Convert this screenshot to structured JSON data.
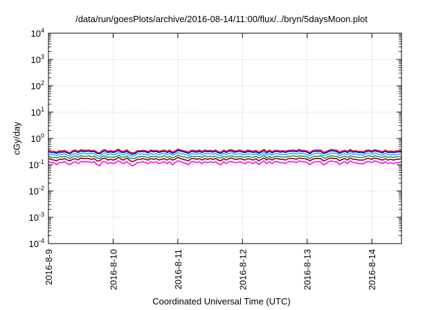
{
  "chart_data": {
    "type": "line",
    "title": "/data/run/goesPlots/archive/2016-08-14/11:00/flux/../bryn/5daysMoon.plot",
    "xlabel": "Coordinated Universal Time (UTC)",
    "ylabel": "cGy/day",
    "y_scale": "log",
    "ylim": [
      0.0001,
      10000
    ],
    "y_ticks": [
      {
        "value": 0.0001,
        "base": "10",
        "exp": "-4"
      },
      {
        "value": 0.001,
        "base": "10",
        "exp": "-3"
      },
      {
        "value": 0.01,
        "base": "10",
        "exp": "-2"
      },
      {
        "value": 0.1,
        "base": "10",
        "exp": "-1"
      },
      {
        "value": 1,
        "base": "10",
        "exp": "0"
      },
      {
        "value": 10,
        "base": "10",
        "exp": "1"
      },
      {
        "value": 100,
        "base": "10",
        "exp": "2"
      },
      {
        "value": 1000,
        "base": "10",
        "exp": "3"
      },
      {
        "value": 10000,
        "base": "10",
        "exp": "4"
      }
    ],
    "xlim": [
      "2016-08-09T00:00",
      "2016-08-14T11:00"
    ],
    "x_ticks": [
      "2016-8-9",
      "2016-8-10",
      "2016-8-11",
      "2016-8-12",
      "2016-8-13",
      "2016-8-14"
    ],
    "grid": true,
    "x_step_hours": 1,
    "series": [
      {
        "color": "#ff0000",
        "base": 0.33,
        "values": [
          0.36,
          0.33,
          0.32,
          0.3,
          0.34,
          0.33,
          0.35,
          0.31,
          0.28,
          0.34,
          0.36,
          0.32,
          0.37,
          0.36,
          0.35,
          0.36,
          0.34,
          0.35,
          0.3,
          0.28,
          0.35,
          0.37,
          0.32,
          0.34,
          0.32,
          0.34,
          0.39,
          0.33,
          0.32,
          0.37,
          0.31,
          0.28,
          0.29,
          0.34,
          0.34,
          0.35,
          0.34,
          0.31,
          0.36,
          0.34,
          0.35,
          0.32,
          0.34,
          0.36,
          0.32,
          0.36,
          0.3,
          0.33,
          0.39,
          0.36,
          0.34,
          0.32,
          0.3,
          0.35,
          0.35,
          0.33,
          0.36,
          0.32,
          0.36,
          0.34,
          0.35,
          0.33,
          0.36,
          0.31,
          0.3,
          0.36,
          0.32,
          0.36,
          0.37,
          0.33,
          0.34,
          0.36,
          0.33,
          0.32,
          0.36,
          0.34,
          0.32,
          0.35,
          0.3,
          0.33,
          0.38,
          0.31,
          0.36,
          0.31,
          0.35,
          0.35,
          0.33,
          0.34,
          0.32,
          0.35,
          0.35,
          0.36,
          0.34,
          0.38,
          0.35,
          0.35,
          0.33,
          0.29,
          0.34,
          0.36,
          0.36,
          0.36,
          0.3,
          0.31,
          0.35,
          0.38,
          0.36,
          0.36,
          0.3,
          0.33,
          0.35,
          0.32,
          0.38,
          0.33,
          0.34,
          0.32,
          0.32,
          0.31,
          0.36,
          0.36,
          0.33,
          0.37,
          0.35,
          0.33,
          0.31,
          0.36,
          0.32,
          0.33,
          0.32,
          0.33,
          0.34,
          0.35
        ]
      },
      {
        "color": "#0000ff",
        "base": 0.3,
        "values": [
          0.32,
          0.29,
          0.29,
          0.27,
          0.3,
          0.3,
          0.31,
          0.28,
          0.26,
          0.31,
          0.33,
          0.29,
          0.33,
          0.32,
          0.32,
          0.33,
          0.31,
          0.32,
          0.27,
          0.26,
          0.31,
          0.34,
          0.29,
          0.31,
          0.29,
          0.31,
          0.35,
          0.3,
          0.29,
          0.33,
          0.28,
          0.25,
          0.26,
          0.31,
          0.31,
          0.32,
          0.31,
          0.28,
          0.33,
          0.31,
          0.32,
          0.29,
          0.31,
          0.33,
          0.29,
          0.32,
          0.27,
          0.3,
          0.35,
          0.33,
          0.31,
          0.29,
          0.27,
          0.32,
          0.31,
          0.3,
          0.32,
          0.29,
          0.33,
          0.31,
          0.32,
          0.3,
          0.33,
          0.28,
          0.27,
          0.33,
          0.29,
          0.33,
          0.33,
          0.3,
          0.31,
          0.33,
          0.3,
          0.29,
          0.32,
          0.31,
          0.29,
          0.31,
          0.27,
          0.3,
          0.35,
          0.28,
          0.33,
          0.28,
          0.32,
          0.32,
          0.3,
          0.31,
          0.29,
          0.32,
          0.32,
          0.33,
          0.31,
          0.34,
          0.31,
          0.32,
          0.3,
          0.26,
          0.31,
          0.33,
          0.32,
          0.33,
          0.27,
          0.28,
          0.32,
          0.34,
          0.33,
          0.32,
          0.27,
          0.3,
          0.32,
          0.29,
          0.34,
          0.3,
          0.31,
          0.29,
          0.29,
          0.28,
          0.32,
          0.33,
          0.3,
          0.34,
          0.32,
          0.3,
          0.28,
          0.33,
          0.29,
          0.3,
          0.29,
          0.3,
          0.31,
          0.32
        ]
      },
      {
        "color": "#00bfff",
        "base": 0.25,
        "values": [
          0.26,
          0.24,
          0.24,
          0.22,
          0.25,
          0.25,
          0.26,
          0.23,
          0.21,
          0.25,
          0.27,
          0.24,
          0.27,
          0.27,
          0.26,
          0.27,
          0.26,
          0.26,
          0.22,
          0.21,
          0.26,
          0.28,
          0.24,
          0.26,
          0.24,
          0.25,
          0.29,
          0.25,
          0.24,
          0.28,
          0.23,
          0.21,
          0.22,
          0.26,
          0.25,
          0.26,
          0.25,
          0.23,
          0.27,
          0.25,
          0.26,
          0.24,
          0.26,
          0.27,
          0.24,
          0.27,
          0.23,
          0.25,
          0.29,
          0.27,
          0.25,
          0.24,
          0.22,
          0.26,
          0.26,
          0.25,
          0.27,
          0.24,
          0.27,
          0.26,
          0.26,
          0.25,
          0.27,
          0.23,
          0.22,
          0.27,
          0.24,
          0.27,
          0.28,
          0.25,
          0.25,
          0.27,
          0.24,
          0.24,
          0.27,
          0.25,
          0.24,
          0.26,
          0.23,
          0.24,
          0.29,
          0.23,
          0.27,
          0.23,
          0.26,
          0.26,
          0.25,
          0.25,
          0.24,
          0.26,
          0.26,
          0.27,
          0.25,
          0.28,
          0.26,
          0.26,
          0.24,
          0.22,
          0.25,
          0.27,
          0.27,
          0.27,
          0.22,
          0.23,
          0.26,
          0.28,
          0.27,
          0.27,
          0.22,
          0.25,
          0.26,
          0.24,
          0.28,
          0.25,
          0.25,
          0.24,
          0.24,
          0.23,
          0.27,
          0.27,
          0.25,
          0.28,
          0.26,
          0.25,
          0.23,
          0.27,
          0.24,
          0.24,
          0.24,
          0.24,
          0.25,
          0.26
        ]
      },
      {
        "color": "#2e8b57",
        "base": 0.2,
        "values": [
          0.21,
          0.19,
          0.19,
          0.18,
          0.2,
          0.2,
          0.21,
          0.19,
          0.17,
          0.2,
          0.22,
          0.19,
          0.22,
          0.21,
          0.21,
          0.22,
          0.2,
          0.21,
          0.18,
          0.17,
          0.21,
          0.22,
          0.19,
          0.2,
          0.19,
          0.2,
          0.23,
          0.2,
          0.19,
          0.22,
          0.18,
          0.17,
          0.17,
          0.2,
          0.2,
          0.21,
          0.2,
          0.18,
          0.21,
          0.2,
          0.21,
          0.19,
          0.2,
          0.22,
          0.19,
          0.21,
          0.18,
          0.2,
          0.23,
          0.21,
          0.2,
          0.19,
          0.18,
          0.21,
          0.21,
          0.2,
          0.21,
          0.19,
          0.22,
          0.2,
          0.21,
          0.2,
          0.21,
          0.18,
          0.18,
          0.21,
          0.19,
          0.21,
          0.22,
          0.2,
          0.2,
          0.21,
          0.2,
          0.19,
          0.21,
          0.2,
          0.19,
          0.21,
          0.18,
          0.2,
          0.23,
          0.18,
          0.21,
          0.18,
          0.21,
          0.21,
          0.2,
          0.2,
          0.19,
          0.21,
          0.21,
          0.22,
          0.2,
          0.22,
          0.21,
          0.21,
          0.2,
          0.17,
          0.2,
          0.21,
          0.21,
          0.22,
          0.18,
          0.18,
          0.21,
          0.22,
          0.21,
          0.21,
          0.18,
          0.2,
          0.21,
          0.19,
          0.22,
          0.2,
          0.2,
          0.19,
          0.19,
          0.19,
          0.21,
          0.22,
          0.2,
          0.22,
          0.21,
          0.2,
          0.19,
          0.21,
          0.19,
          0.2,
          0.19,
          0.2,
          0.2,
          0.21
        ]
      },
      {
        "color": "#8b0000",
        "base": 0.16,
        "values": [
          0.17,
          0.16,
          0.15,
          0.14,
          0.16,
          0.16,
          0.17,
          0.15,
          0.14,
          0.16,
          0.17,
          0.15,
          0.18,
          0.17,
          0.17,
          0.17,
          0.16,
          0.17,
          0.14,
          0.14,
          0.17,
          0.18,
          0.15,
          0.16,
          0.15,
          0.16,
          0.19,
          0.16,
          0.15,
          0.18,
          0.15,
          0.13,
          0.14,
          0.16,
          0.16,
          0.17,
          0.16,
          0.15,
          0.17,
          0.16,
          0.17,
          0.15,
          0.16,
          0.17,
          0.15,
          0.17,
          0.15,
          0.16,
          0.19,
          0.17,
          0.16,
          0.15,
          0.14,
          0.17,
          0.17,
          0.16,
          0.17,
          0.15,
          0.17,
          0.16,
          0.17,
          0.16,
          0.17,
          0.15,
          0.14,
          0.17,
          0.15,
          0.17,
          0.18,
          0.16,
          0.16,
          0.17,
          0.16,
          0.15,
          0.17,
          0.16,
          0.15,
          0.17,
          0.14,
          0.16,
          0.18,
          0.15,
          0.17,
          0.15,
          0.17,
          0.17,
          0.16,
          0.16,
          0.15,
          0.17,
          0.17,
          0.17,
          0.16,
          0.18,
          0.17,
          0.17,
          0.16,
          0.14,
          0.16,
          0.17,
          0.17,
          0.17,
          0.14,
          0.15,
          0.17,
          0.18,
          0.17,
          0.17,
          0.14,
          0.16,
          0.17,
          0.15,
          0.18,
          0.16,
          0.16,
          0.15,
          0.15,
          0.15,
          0.17,
          0.17,
          0.16,
          0.18,
          0.17,
          0.16,
          0.15,
          0.17,
          0.15,
          0.16,
          0.15,
          0.16,
          0.16,
          0.17
        ]
      },
      {
        "color": "#ff00ff",
        "base": 0.12,
        "values": [
          0.13,
          0.12,
          0.12,
          0.1,
          0.12,
          0.12,
          0.13,
          0.11,
          0.1,
          0.12,
          0.13,
          0.11,
          0.13,
          0.13,
          0.13,
          0.13,
          0.12,
          0.13,
          0.1,
          0.09,
          0.13,
          0.13,
          0.11,
          0.12,
          0.11,
          0.12,
          0.14,
          0.12,
          0.11,
          0.13,
          0.11,
          0.09,
          0.1,
          0.12,
          0.12,
          0.13,
          0.12,
          0.11,
          0.13,
          0.12,
          0.13,
          0.11,
          0.12,
          0.13,
          0.11,
          0.13,
          0.1,
          0.12,
          0.14,
          0.13,
          0.12,
          0.11,
          0.1,
          0.13,
          0.13,
          0.12,
          0.13,
          0.11,
          0.13,
          0.12,
          0.13,
          0.12,
          0.13,
          0.11,
          0.1,
          0.13,
          0.11,
          0.13,
          0.13,
          0.12,
          0.12,
          0.13,
          0.12,
          0.11,
          0.13,
          0.12,
          0.11,
          0.13,
          0.1,
          0.12,
          0.14,
          0.11,
          0.13,
          0.11,
          0.13,
          0.13,
          0.12,
          0.12,
          0.11,
          0.13,
          0.13,
          0.13,
          0.12,
          0.14,
          0.13,
          0.13,
          0.12,
          0.1,
          0.12,
          0.13,
          0.13,
          0.13,
          0.1,
          0.11,
          0.13,
          0.14,
          0.13,
          0.13,
          0.1,
          0.12,
          0.13,
          0.11,
          0.14,
          0.12,
          0.12,
          0.11,
          0.11,
          0.11,
          0.13,
          0.13,
          0.12,
          0.14,
          0.13,
          0.12,
          0.11,
          0.13,
          0.11,
          0.12,
          0.11,
          0.12,
          0.12,
          0.13
        ]
      }
    ]
  }
}
